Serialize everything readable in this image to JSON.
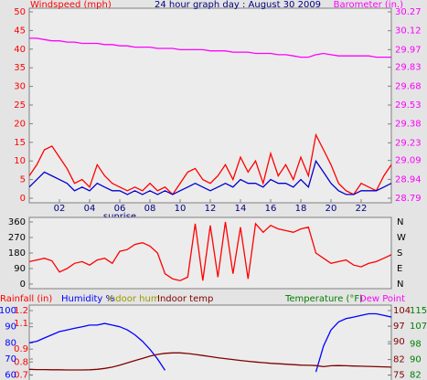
{
  "chart_data": [
    {
      "type": "line",
      "title": "24 hour graph day : August 30 2009",
      "y_label": "Windspeed (mph)",
      "y2_label": "Barometer (in.)",
      "x": [
        0,
        0.5,
        1,
        1.5,
        2,
        2.5,
        3,
        3.5,
        4,
        4.5,
        5,
        5.5,
        6,
        6.5,
        7,
        7.5,
        8,
        8.5,
        9,
        9.5,
        10,
        10.5,
        11,
        11.5,
        12,
        12.5,
        13,
        13.5,
        14,
        14.5,
        15,
        15.5,
        16,
        16.5,
        17,
        17.5,
        18,
        18.5,
        19,
        19.5,
        20,
        20.5,
        21,
        21.5,
        22,
        22.5,
        23,
        23.5,
        24
      ],
      "xlim": [
        0,
        24
      ],
      "xticks": [
        {
          "value": 2,
          "label": "02"
        },
        {
          "value": 4,
          "label": "04"
        },
        {
          "value": 6,
          "label": "06"
        },
        {
          "value": 8,
          "label": "08"
        },
        10,
        12,
        14,
        16,
        18,
        20,
        22
      ],
      "annotations": [
        {
          "text": "sunrise",
          "x": 6
        }
      ],
      "ylim": [
        0,
        50
      ],
      "yticks": [
        0,
        5,
        10,
        15,
        20,
        25,
        30,
        35,
        40,
        45,
        50
      ],
      "y2lim": [
        28.79,
        30.27
      ],
      "y2ticks": [
        28.79,
        28.94,
        29.09,
        29.23,
        29.38,
        29.53,
        29.68,
        29.83,
        29.97,
        30.12,
        30.27
      ],
      "series": [
        {
          "color": "#ff0000",
          "values": [
            6,
            9,
            13,
            14,
            11,
            8,
            4,
            5,
            3,
            9,
            6,
            4,
            3,
            2,
            3,
            2,
            4,
            2,
            3,
            1,
            4,
            7,
            8,
            5,
            4,
            6,
            9,
            5,
            11,
            7,
            10,
            4,
            12,
            6,
            9,
            5,
            11,
            6,
            17,
            13,
            9,
            4,
            2,
            1,
            4,
            3,
            2,
            6,
            9
          ]
        },
        {
          "color": "#0000cc",
          "values": [
            3,
            5,
            7,
            6,
            5,
            4,
            2,
            3,
            2,
            4,
            3,
            2,
            2,
            1,
            2,
            1,
            2,
            1,
            2,
            1,
            2,
            3,
            4,
            3,
            2,
            3,
            4,
            3,
            5,
            4,
            4,
            3,
            5,
            4,
            4,
            3,
            5,
            3,
            10,
            7,
            4,
            2,
            1,
            1,
            2,
            2,
            2,
            3,
            4
          ]
        },
        {
          "color": "#ff00ff",
          "axis": "y2",
          "values": [
            30.06,
            30.06,
            30.05,
            30.04,
            30.04,
            30.03,
            30.03,
            30.02,
            30.02,
            30.02,
            30.01,
            30.01,
            30.0,
            30.0,
            29.99,
            29.99,
            29.99,
            29.98,
            29.98,
            29.98,
            29.97,
            29.97,
            29.97,
            29.97,
            29.96,
            29.96,
            29.96,
            29.95,
            29.95,
            29.95,
            29.94,
            29.94,
            29.94,
            29.93,
            29.93,
            29.92,
            29.91,
            29.91,
            29.93,
            29.94,
            29.93,
            29.92,
            29.92,
            29.92,
            29.92,
            29.92,
            29.91,
            29.91,
            29.91
          ]
        }
      ]
    },
    {
      "type": "line",
      "x": [
        0,
        0.5,
        1,
        1.5,
        2,
        2.5,
        3,
        3.5,
        4,
        4.5,
        5,
        5.5,
        6,
        6.5,
        7,
        7.5,
        8,
        8.5,
        9,
        9.5,
        10,
        10.5,
        11,
        11.5,
        12,
        12.5,
        13,
        13.5,
        14,
        14.5,
        15,
        15.5,
        16,
        16.5,
        17,
        17.5,
        18,
        18.5,
        19,
        19.5,
        20,
        20.5,
        21,
        21.5,
        22,
        22.5,
        23,
        23.5,
        24
      ],
      "xlim": [
        0,
        24
      ],
      "ylim": [
        0,
        360
      ],
      "yticks": [
        0,
        90,
        180,
        270,
        360
      ],
      "direction_labels": [
        "N",
        "E",
        "S",
        "W",
        "N"
      ],
      "series": [
        {
          "color": "#ff0000",
          "values": [
            130,
            140,
            150,
            135,
            70,
            90,
            120,
            130,
            110,
            140,
            150,
            120,
            190,
            200,
            230,
            240,
            220,
            180,
            60,
            30,
            20,
            40,
            350,
            20,
            340,
            40,
            360,
            60,
            330,
            30,
            350,
            300,
            340,
            320,
            310,
            300,
            320,
            330,
            180,
            150,
            120,
            130,
            140,
            110,
            100,
            120,
            130,
            150,
            170
          ]
        }
      ]
    },
    {
      "type": "line",
      "x": [
        0,
        0.5,
        1,
        1.5,
        2,
        2.5,
        3,
        3.5,
        4,
        4.5,
        5,
        5.5,
        6,
        6.5,
        7,
        7.5,
        8,
        8.5,
        9,
        9.5,
        10,
        10.5,
        11,
        11.5,
        12,
        12.5,
        13,
        13.5,
        14,
        14.5,
        15,
        15.5,
        16,
        16.5,
        17,
        17.5,
        18,
        18.5,
        19,
        19.5,
        20,
        20.5,
        21,
        21.5,
        22,
        22.5,
        23,
        23.5,
        24
      ],
      "xlim": [
        0,
        24
      ],
      "axes": [
        {
          "title": "Rainfall (in)",
          "color": "#ff0000",
          "ylim": [
            0.66,
            1.2
          ],
          "yticks": [
            0.7,
            0.8,
            0.9,
            1.1,
            1.2
          ]
        },
        {
          "title": "Humidity %",
          "color": "#0000ff",
          "ylim": [
            57,
            100
          ],
          "yticks": [
            60,
            70,
            80,
            90,
            100
          ]
        },
        {
          "title": "Indoor hum",
          "color": "#999900"
        },
        {
          "title": "Indoor temp",
          "color": "#800000",
          "ylim": [
            72.8,
            104
          ],
          "yticks": [
            75,
            82,
            90,
            97,
            104
          ]
        },
        {
          "title": "Temperature (°F)",
          "color": "#008000",
          "ylim": [
            79.5,
            115
          ],
          "yticks": [
            82,
            90,
            98,
            107,
            115
          ]
        },
        {
          "title": "Dew Point",
          "color": "#ff00ff"
        }
      ],
      "series": [
        {
          "color": "#0000ff",
          "axis": 1,
          "values": [
            80,
            81,
            83,
            85,
            87,
            88,
            89,
            90,
            91,
            91,
            92,
            91,
            90,
            88,
            85,
            81,
            76,
            70,
            63,
            null,
            null,
            null,
            null,
            null,
            null,
            null,
            null,
            null,
            null,
            null,
            null,
            null,
            null,
            null,
            null,
            null,
            null,
            null,
            62,
            78,
            88,
            93,
            95,
            96,
            97,
            98,
            98,
            97,
            96
          ]
        },
        {
          "color": "#800000",
          "axis": 3,
          "values": [
            77.6,
            77.5,
            77.5,
            77.4,
            77.4,
            77.3,
            77.3,
            77.3,
            77.4,
            77.6,
            78,
            78.6,
            79.5,
            80.5,
            81.5,
            82.5,
            83.5,
            84.3,
            84.8,
            85,
            85,
            84.7,
            84.3,
            83.8,
            83.3,
            82.8,
            82.4,
            82,
            81.6,
            81.2,
            80.9,
            80.6,
            80.3,
            80.1,
            79.9,
            79.7,
            79.5,
            79.4,
            79.3,
            78.8,
            79.2,
            79.3,
            79.2,
            79.1,
            79,
            78.9,
            78.8,
            78.7,
            78.6
          ]
        }
      ]
    }
  ]
}
